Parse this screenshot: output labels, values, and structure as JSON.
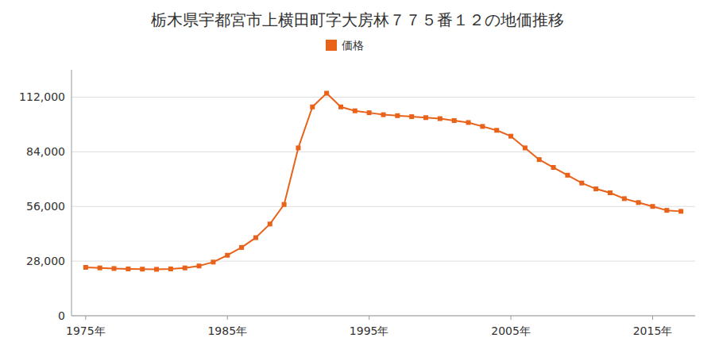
{
  "chart_data": {
    "type": "line",
    "title": "栃木県宇都宮市上横田町字大房林７７５番１２の地価推移",
    "x": [
      1975,
      1976,
      1977,
      1978,
      1979,
      1980,
      1981,
      1982,
      1983,
      1984,
      1985,
      1986,
      1987,
      1988,
      1989,
      1990,
      1991,
      1992,
      1993,
      1994,
      1995,
      1996,
      1997,
      1998,
      1999,
      2000,
      2001,
      2002,
      2003,
      2004,
      2005,
      2006,
      2007,
      2008,
      2009,
      2010,
      2011,
      2012,
      2013,
      2014,
      2015,
      2016,
      2017
    ],
    "series": [
      {
        "name": "価格",
        "color": "#E8621A",
        "marker": "square",
        "values": [
          24800,
          24500,
          24200,
          24000,
          23900,
          23800,
          24000,
          24500,
          25500,
          27500,
          31000,
          35000,
          40000,
          47000,
          57000,
          86000,
          107000,
          114000,
          107000,
          105000,
          104000,
          103000,
          102500,
          102000,
          101500,
          101000,
          100000,
          99000,
          97000,
          95000,
          92000,
          86000,
          80000,
          76000,
          72000,
          68000,
          65000,
          63000,
          60000,
          58000,
          56000,
          54000,
          53500
        ]
      }
    ],
    "xlim": [
      1974,
      2018
    ],
    "xticks": [
      {
        "value": 1975,
        "label": "1975年"
      },
      {
        "value": 1985,
        "label": "1985年"
      },
      {
        "value": 1995,
        "label": "1995年"
      },
      {
        "value": 2005,
        "label": "2005年"
      },
      {
        "value": 2015,
        "label": "2015年"
      }
    ],
    "ylim": [
      0,
      126000
    ],
    "yticks": [
      0,
      {
        "value": 28000,
        "label": "28,000"
      },
      {
        "value": 56000,
        "label": "56,000"
      },
      {
        "value": 84000,
        "label": "84,000"
      },
      {
        "value": 112000,
        "label": "112,000"
      }
    ],
    "grid": true,
    "legend": "top"
  }
}
